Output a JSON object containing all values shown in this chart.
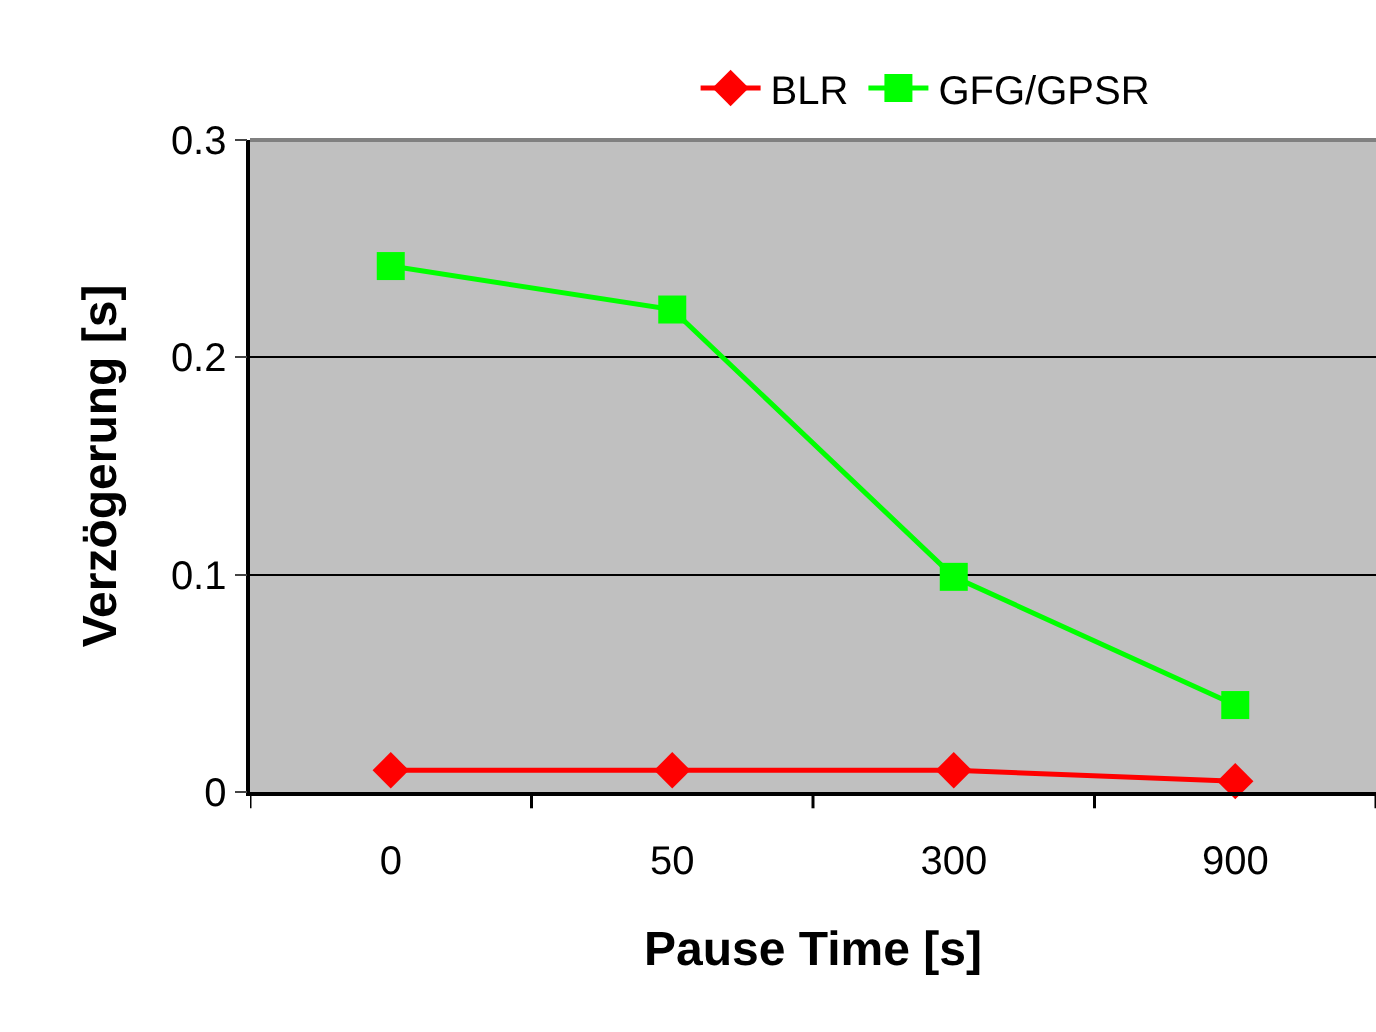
{
  "chart_data": {
    "type": "line",
    "xlabel": "Pause Time [s]",
    "ylabel": "Verzögerung [s]",
    "categories": [
      "0",
      "50",
      "300",
      "900"
    ],
    "series": [
      {
        "name": "BLR",
        "color": "#ff0000",
        "marker": "diamond",
        "values": [
          0.01,
          0.01,
          0.01,
          0.005
        ]
      },
      {
        "name": "GFG/GPSR",
        "color": "#00ff00",
        "marker": "square",
        "values": [
          0.242,
          0.222,
          0.099,
          0.04
        ]
      }
    ],
    "ylim": [
      0,
      0.3
    ],
    "yticks": [
      0,
      0.1,
      0.2,
      0.3
    ],
    "grid": "y",
    "legend": "top",
    "line_style": "solid"
  }
}
